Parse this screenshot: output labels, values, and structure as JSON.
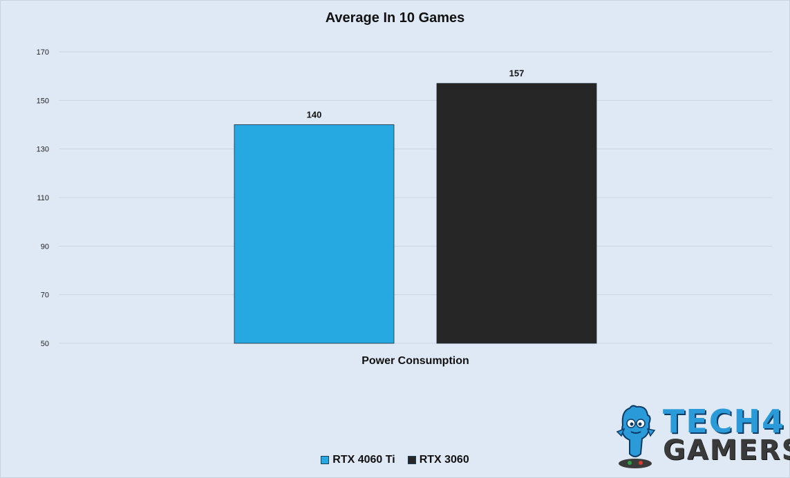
{
  "chart_data": {
    "type": "bar",
    "title": "Average In 10 Games",
    "categories": [
      "Power Consumption"
    ],
    "series": [
      {
        "name": "RTX 4060 Ti",
        "values": [
          140
        ],
        "color": "#26a9e1"
      },
      {
        "name": "RTX 3060",
        "values": [
          157
        ],
        "color": "#262626"
      }
    ],
    "ylim": [
      50,
      170
    ],
    "yticks": [
      50,
      70,
      90,
      110,
      130,
      150,
      170
    ],
    "grid": true,
    "legend_position": "bottom",
    "data_labels": true
  },
  "logo": {
    "line1": "TECH4",
    "line2": "GAMERS"
  }
}
